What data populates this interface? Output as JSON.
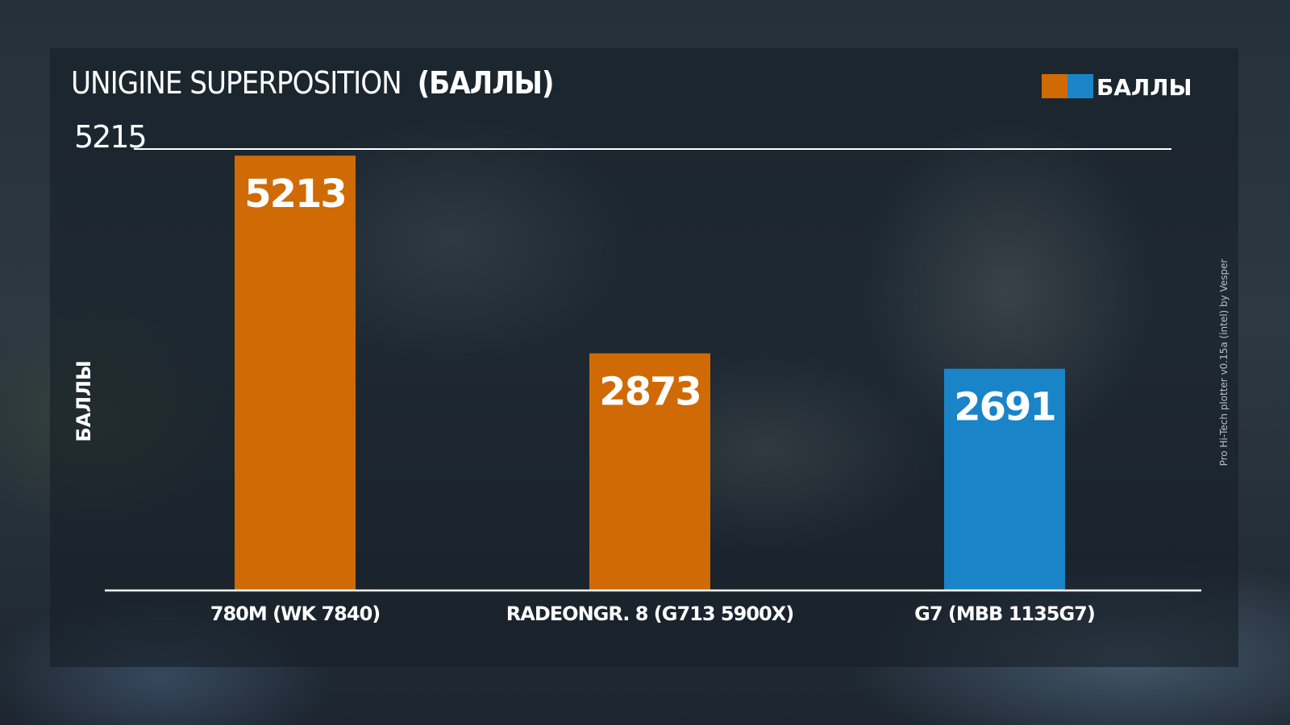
{
  "chart_data": {
    "type": "bar",
    "title": "UNIGINE SUPERPOSITION",
    "title_suffix": "(БАЛЛЫ)",
    "ylabel": "БАЛЛЫ",
    "legend": {
      "label": "БАЛЛЫ",
      "placement": "top-right",
      "colors": [
        "#d06a05",
        "#1a84c8"
      ]
    },
    "ymax_label": "5215",
    "ylim": [
      0,
      5215
    ],
    "grid": false,
    "categories": [
      "780M (WK 7840)",
      "RADEONGR. 8 (G713 5900X)",
      "G7 (MBB 1135G7)"
    ],
    "series": [
      {
        "values": [
          5213,
          2873,
          2691
        ],
        "colors": [
          "#d06a05",
          "#d06a05",
          "#1a84c8"
        ]
      }
    ],
    "data_labels": [
      "5213",
      "2873",
      "2691"
    ]
  },
  "watermark": "Pro Hi-Tech plotter v0.15a (intel) by Vesper"
}
